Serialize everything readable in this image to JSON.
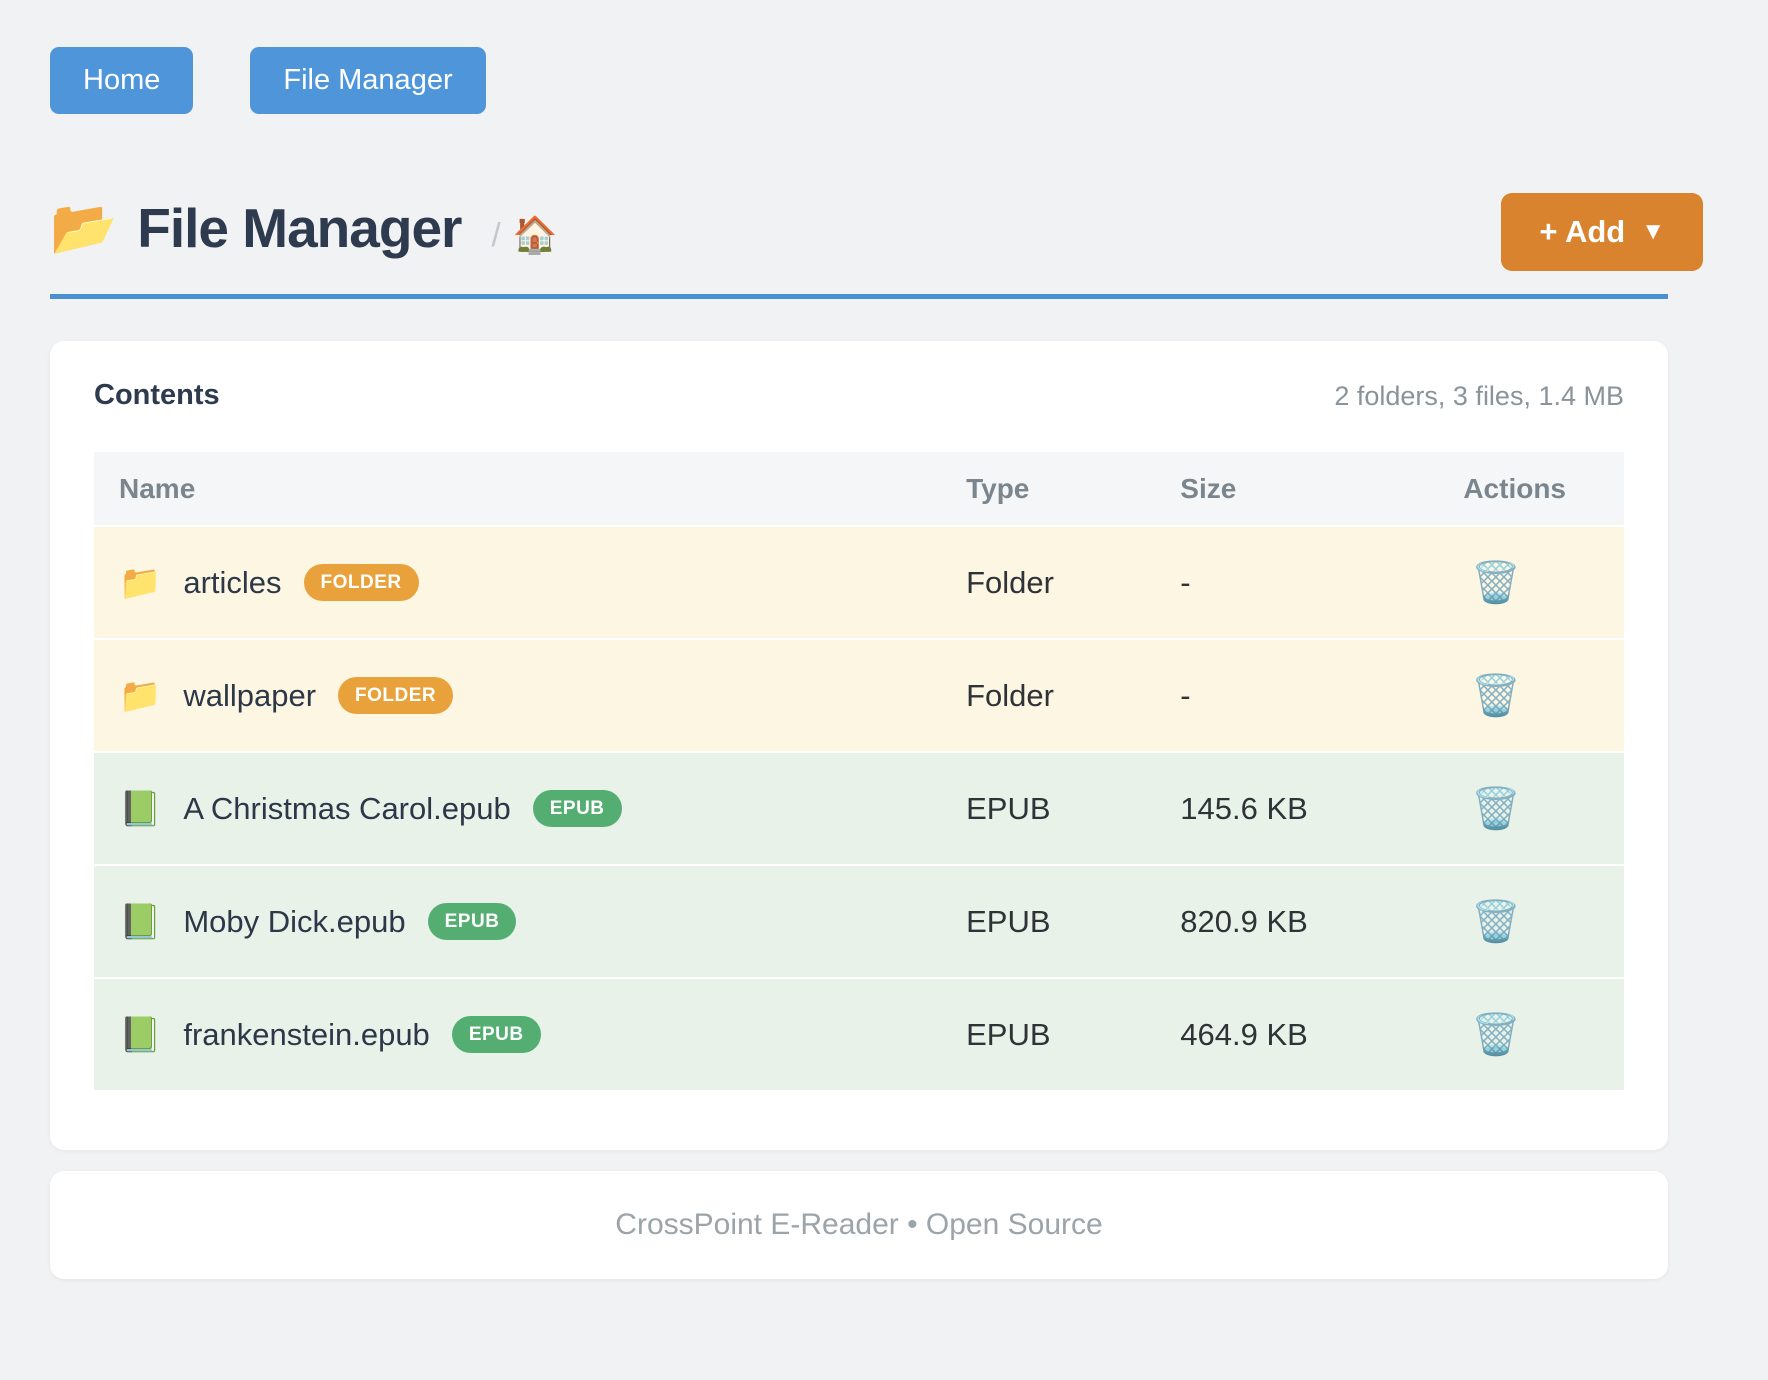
{
  "nav": {
    "home_label": "Home",
    "file_manager_label": "File Manager"
  },
  "header": {
    "title": "File Manager",
    "title_icon": "📂",
    "breadcrumb_separator": "/",
    "breadcrumb_home_icon": "🏠",
    "add_button_label": "+ Add",
    "add_button_caret": "▼"
  },
  "contents": {
    "heading": "Contents",
    "summary": "2 folders, 3 files, 1.4 MB",
    "columns": {
      "name": "Name",
      "type": "Type",
      "size": "Size",
      "actions": "Actions"
    },
    "action_icon": "🗑️",
    "rows": [
      {
        "icon": "📁",
        "name": "articles",
        "badge": "FOLDER",
        "type": "Folder",
        "size": "-"
      },
      {
        "icon": "📁",
        "name": "wallpaper",
        "badge": "FOLDER",
        "type": "Folder",
        "size": "-"
      },
      {
        "icon": "📗",
        "name": "A Christmas Carol.epub",
        "badge": "EPUB",
        "type": "EPUB",
        "size": "145.6 KB"
      },
      {
        "icon": "📗",
        "name": "Moby Dick.epub",
        "badge": "EPUB",
        "type": "EPUB",
        "size": "820.9 KB"
      },
      {
        "icon": "📗",
        "name": "frankenstein.epub",
        "badge": "EPUB",
        "type": "EPUB",
        "size": "464.9 KB"
      }
    ]
  },
  "footer": {
    "text": "CrossPoint E-Reader • Open Source"
  },
  "colors": {
    "primary_blue": "#4e95d9",
    "accent_orange": "#d9832f",
    "badge_folder": "#e9a23b",
    "badge_epub": "#54ae71",
    "row_folder_bg": "#fdf6e3",
    "row_epub_bg": "#e8f2e9",
    "divider_blue": "#4a90d2"
  }
}
